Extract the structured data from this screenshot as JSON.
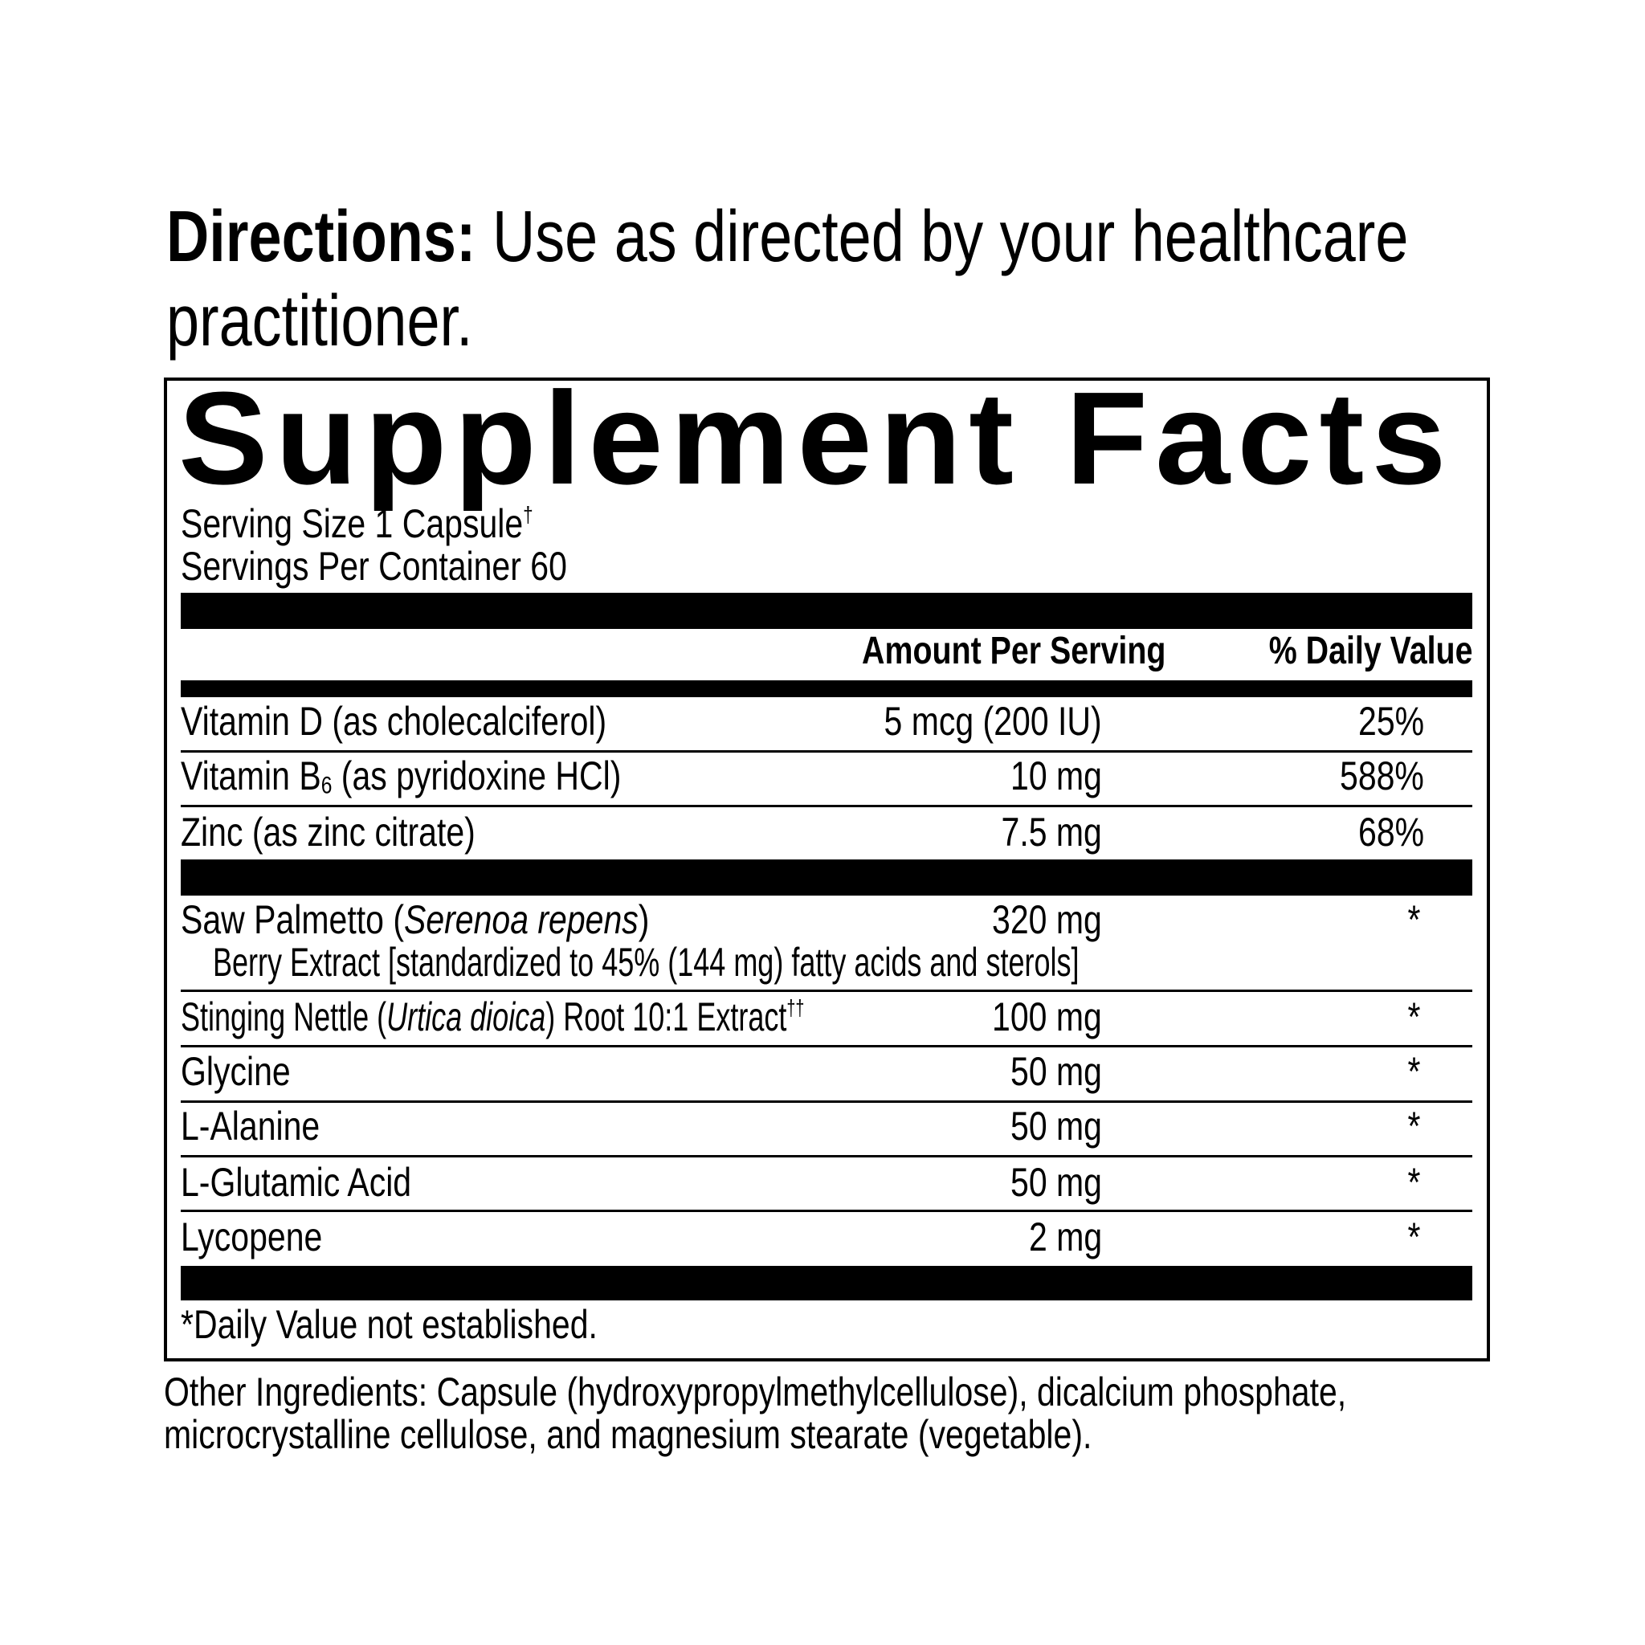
{
  "directions": {
    "label": "Directions:",
    "text_line1": "Use as directed by your healthcare",
    "text_line2": "practitioner."
  },
  "facts": {
    "title": "Supplement Facts",
    "serving_size": "Serving Size 1 Capsule",
    "serving_size_mark": "†",
    "servings_per_container": "Servings Per Container 60",
    "col_amount": "Amount Per Serving",
    "col_dv": "% Daily Value",
    "vitamins": [
      {
        "name": "Vitamin D (as cholecalciferol)",
        "amount": "5 mcg (200 IU)",
        "dv": "25%"
      },
      {
        "name_pre": "Vitamin B",
        "name_sub": "6",
        "name_post": " (as pyridoxine HCl)",
        "amount": "10 mg",
        "dv": "588%"
      },
      {
        "name": "Zinc (as zinc citrate)",
        "amount": "7.5 mg",
        "dv": "68%"
      }
    ],
    "saw_palmetto": {
      "name_pre": "Saw Palmetto (",
      "name_italic": "Serenoa repens",
      "name_post": ")",
      "line2": "Berry Extract [standardized to 45% (144 mg) fatty acids and sterols]",
      "amount": "320 mg",
      "dv": "*"
    },
    "nettle": {
      "name_pre": "Stinging Nettle (",
      "name_italic": "Urtica dioica",
      "name_post": ") Root 10:1 Extract",
      "mark": "††",
      "amount": "100 mg",
      "dv": "*"
    },
    "others": [
      {
        "name": "Glycine",
        "amount": "50 mg",
        "dv": "*"
      },
      {
        "name": "L-Alanine",
        "amount": "50 mg",
        "dv": "*"
      },
      {
        "name": "L-Glutamic Acid",
        "amount": "50 mg",
        "dv": "*"
      },
      {
        "name": "Lycopene",
        "amount": "2 mg",
        "dv": "*"
      }
    ],
    "footnote": "*Daily Value not established."
  },
  "other_ingredients": {
    "line1": "Other Ingredients: Capsule (hydroxypropylmethylcellulose), dicalcium phosphate,",
    "line2": "microcrystalline cellulose, and magnesium stearate (vegetable)."
  }
}
